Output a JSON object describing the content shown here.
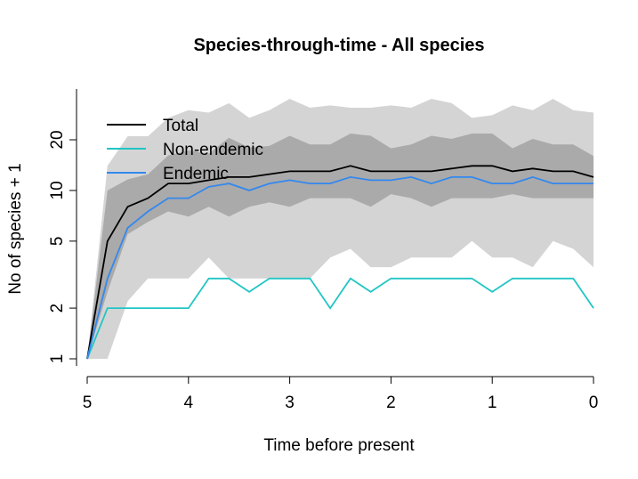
{
  "chart_data": {
    "type": "line",
    "title": "Species-through-time - All species",
    "xlabel": "Time before present",
    "ylabel": "No of species + 1",
    "xlim": [
      5,
      0
    ],
    "ylim": [
      1,
      40
    ],
    "y_scale": "log",
    "grid": false,
    "legend_position": "top-left",
    "x_ticks": [
      5,
      4,
      3,
      2,
      1,
      0
    ],
    "x_tick_labels": [
      "5",
      "4",
      "3",
      "2",
      "1",
      "0"
    ],
    "y_ticks": [
      1,
      2,
      5,
      10,
      20
    ],
    "y_tick_labels": [
      "1",
      "2",
      "5",
      "10",
      "20"
    ],
    "x": [
      5,
      4.8,
      4.6,
      4.4,
      4.2,
      4.0,
      3.8,
      3.6,
      3.4,
      3.2,
      3.0,
      2.8,
      2.6,
      2.4,
      2.2,
      2.0,
      1.8,
      1.6,
      1.4,
      1.2,
      1.0,
      0.8,
      0.6,
      0.4,
      0.2,
      0.0
    ],
    "series": [
      {
        "name": "Total",
        "color": "#000000",
        "values": [
          1,
          5,
          8,
          9,
          11,
          11,
          11.5,
          12,
          12,
          12.5,
          13,
          13,
          13,
          14,
          13,
          13,
          13,
          13,
          13.5,
          14,
          14,
          13,
          13.5,
          13,
          13,
          12
        ]
      },
      {
        "name": "Non-endemic",
        "color": "#22c5c5",
        "values": [
          1,
          2,
          2,
          2,
          2,
          2,
          3,
          3,
          2.5,
          3,
          3,
          3,
          2,
          3,
          2.5,
          3,
          3,
          3,
          3,
          3,
          2.5,
          3,
          3,
          3,
          3,
          2
        ]
      },
      {
        "name": "Endemic",
        "color": "#3388ee",
        "values": [
          1,
          3,
          6,
          7.5,
          9,
          9,
          10.5,
          11,
          10,
          11,
          11.5,
          11,
          11,
          12,
          11.5,
          11.5,
          12,
          11,
          12,
          12,
          11,
          11,
          12,
          11,
          11,
          11
        ]
      }
    ],
    "bands": [
      {
        "color": "#d4d4d4",
        "lower": [
          1,
          1,
          2.2,
          3,
          3,
          3,
          4,
          3,
          3,
          3,
          3,
          3,
          4,
          4.5,
          3.5,
          3.5,
          4,
          4,
          4,
          5,
          4,
          4,
          3.5,
          5,
          4.5,
          3.5
        ],
        "upper": [
          1,
          14,
          21,
          21,
          27,
          30,
          29,
          33,
          27,
          30,
          35,
          31,
          32,
          31,
          31,
          32,
          31,
          35,
          33,
          27,
          28,
          32,
          30,
          35,
          30,
          29
        ]
      },
      {
        "color": "#aaaaaa",
        "lower": [
          1,
          2.5,
          5.5,
          6.5,
          7.5,
          7,
          8,
          7,
          8,
          8.5,
          8,
          9,
          9,
          9,
          8,
          9.5,
          9,
          8,
          9,
          9,
          9,
          9.5,
          9,
          9,
          9,
          9
        ]
      }
    ]
  }
}
